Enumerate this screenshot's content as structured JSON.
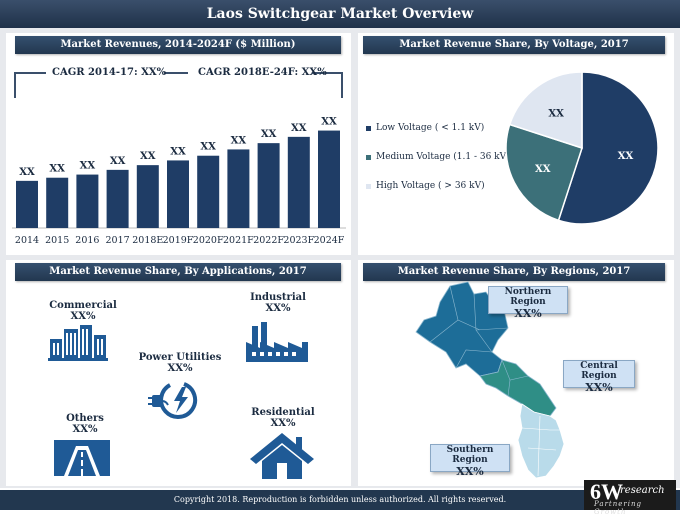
{
  "page": {
    "title": "Laos Switchgear Market Overview",
    "footer": "Copyright 2018. Reproduction is forbidden unless authorized. All rights reserved."
  },
  "logo": {
    "big": "6W",
    "small": "research",
    "tagline": "Partnering Growth"
  },
  "revenues": {
    "header": "Market Revenues, 2014-2024F ($ Million)",
    "cagr1": "CAGR 2014-17: XX%",
    "cagr2": "CAGR 2018E-24F: XX%"
  },
  "voltage": {
    "header": "Market Revenue Share, By Voltage, 2017",
    "legend": [
      "Low Voltage ( < 1.1 kV)",
      "Medium Voltage (1.1 - 36 kV)",
      "High Voltage ( > 36 kV)"
    ]
  },
  "applications": {
    "header": "Market Revenue Share, By Applications, 2017",
    "items": [
      {
        "name": "Commercial",
        "pct": "XX%"
      },
      {
        "name": "Industrial",
        "pct": "XX%"
      },
      {
        "name": "Power Utilities",
        "pct": "XX%"
      },
      {
        "name": "Others",
        "pct": "XX%"
      },
      {
        "name": "Residential",
        "pct": "XX%"
      }
    ]
  },
  "regions": {
    "header": "Market Revenue Share, By Regions, 2017",
    "items": [
      {
        "name": "Northern Region",
        "pct": "XX%"
      },
      {
        "name": "Central Region",
        "pct": "XX%"
      },
      {
        "name": "Southern Region",
        "pct": "XX%"
      }
    ]
  },
  "colors": {
    "navy": "#1f3d66",
    "teal": "#3c7079",
    "light": "#dfe6f1",
    "accent": "#22374f"
  },
  "chart_data": [
    {
      "type": "bar",
      "title": "Market Revenues, 2014-2024F ($ Million)",
      "categories": [
        "2014",
        "2015",
        "2016",
        "2017",
        "2018E",
        "2019F",
        "2020F",
        "2021F",
        "2022F",
        "2023F",
        "2024F"
      ],
      "values": [
        30,
        32,
        34,
        37,
        40,
        43,
        46,
        50,
        54,
        58,
        62
      ],
      "data_labels": [
        "XX",
        "XX",
        "XX",
        "XX",
        "XX",
        "XX",
        "XX",
        "XX",
        "XX",
        "XX",
        "XX"
      ],
      "ylim": [
        0,
        70
      ],
      "xlabel": "",
      "ylabel": ""
    },
    {
      "type": "pie",
      "title": "Market Revenue Share, By Voltage, 2017",
      "categories": [
        "Low Voltage ( < 1.1 kV)",
        "Medium Voltage (1.1 - 36 kV)",
        "High Voltage ( > 36 kV)"
      ],
      "values": [
        55,
        25,
        20
      ],
      "data_labels": [
        "XX",
        "XX",
        "XX"
      ],
      "colors": [
        "#1f3d66",
        "#3c7079",
        "#dfe6f1"
      ]
    }
  ]
}
